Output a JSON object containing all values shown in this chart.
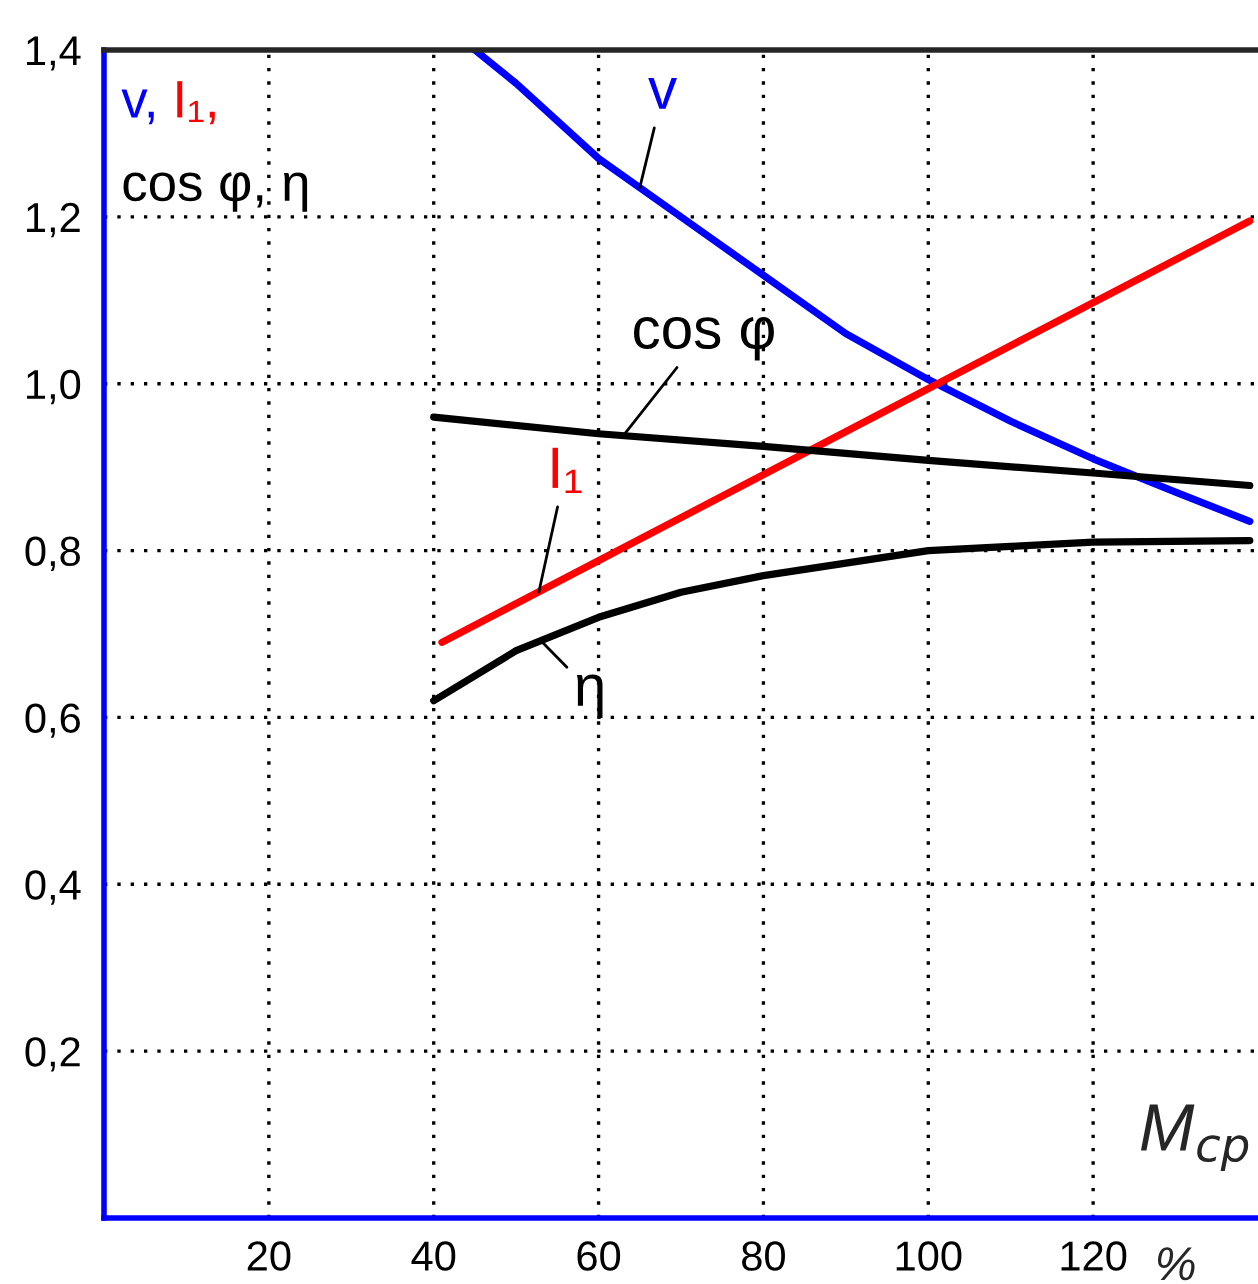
{
  "chart_data": {
    "type": "line",
    "ylabel": "v, I₁, cos φ, η",
    "xlabel": "M$_{cp}$",
    "annotations": [
      "%"
    ],
    "series": [
      {
        "name": "v",
        "color": "#0000ff",
        "x": [
          45,
          50,
          60,
          70,
          80,
          90,
          100,
          110,
          120,
          130,
          139
        ],
        "values": [
          1.4,
          1.36,
          1.27,
          1.2,
          1.13,
          1.06,
          1.005,
          0.955,
          0.91,
          0.87,
          0.835
        ]
      },
      {
        "name": "I₁",
        "color": "#ff0000",
        "x": [
          41,
          139
        ],
        "values": [
          0.69,
          1.195
        ]
      },
      {
        "name": "cos φ",
        "color": "#000000",
        "x": [
          40,
          60,
          80,
          100,
          120,
          139
        ],
        "values": [
          0.96,
          0.94,
          0.925,
          0.908,
          0.893,
          0.878
        ]
      },
      {
        "name": "η",
        "color": "#000000",
        "x": [
          40,
          50,
          60,
          70,
          80,
          90,
          100,
          110,
          120,
          139
        ],
        "values": [
          0.62,
          0.68,
          0.72,
          0.75,
          0.77,
          0.785,
          0.8,
          0.805,
          0.81,
          0.812
        ]
      }
    ],
    "xlim": [
      0,
      140
    ],
    "ylim": [
      0,
      1.4
    ],
    "xticks": [
      20,
      40,
      60,
      80,
      100,
      120
    ],
    "yticks": [
      {
        "value": 0.2,
        "label": "0,2"
      },
      {
        "value": 0.4,
        "label": "0,4"
      },
      {
        "value": 0.6,
        "label": "0,6"
      },
      {
        "value": 0.8,
        "label": "0,8"
      },
      {
        "value": 1.0,
        "label": "1,0"
      },
      {
        "value": 1.2,
        "label": "1,2"
      },
      {
        "value": 1.4,
        "label": "1,4"
      }
    ],
    "grid": true,
    "marker": "none",
    "line_style": "solid"
  }
}
